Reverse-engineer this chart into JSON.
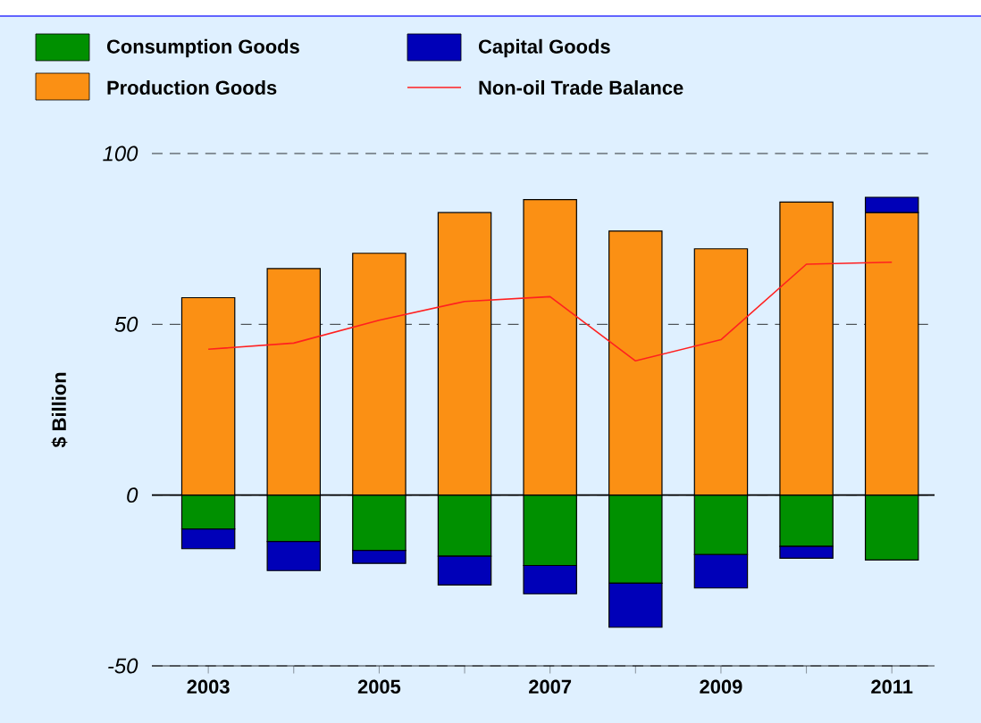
{
  "chart_data": {
    "type": "bar",
    "stacked": true,
    "ylabel": "$ Billion",
    "categories": [
      "2003",
      null,
      "2005",
      null,
      "2007",
      null,
      "2009",
      null,
      "2011"
    ],
    "series": [
      {
        "name": "Consumption Goods",
        "color": "#009000",
        "values": [
          -9.9,
          -13.6,
          -16.2,
          -17.9,
          -20.6,
          -25.8,
          -17.4,
          -15.0,
          -19.0
        ]
      },
      {
        "name": "Production Goods",
        "color": "#fb9014",
        "values": [
          57.8,
          66.3,
          70.8,
          82.7,
          86.5,
          77.3,
          72.1,
          85.8,
          82.7
        ]
      },
      {
        "name": "Capital Goods",
        "color": "#0000b8",
        "values": [
          -5.8,
          -8.5,
          -3.8,
          -8.4,
          -8.3,
          -12.9,
          -9.8,
          -3.5,
          4.5
        ]
      },
      {
        "name": "Non-oil Trade Balance",
        "type": "line",
        "color": "#ff2020",
        "values": [
          42.7,
          44.5,
          51.2,
          56.7,
          58.1,
          39.3,
          45.5,
          67.6,
          68.2
        ]
      }
    ],
    "ylim": [
      -50,
      100
    ],
    "yticks": [
      -50,
      0,
      50,
      100
    ],
    "grid": "y",
    "legend": "top",
    "marker": "none",
    "line_style": "solid"
  }
}
